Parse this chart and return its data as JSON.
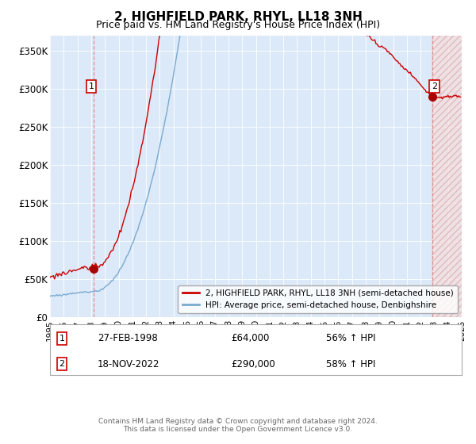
{
  "title": "2, HIGHFIELD PARK, RHYL, LL18 3NH",
  "subtitle": "Price paid vs. HM Land Registry's House Price Index (HPI)",
  "property_label": "2, HIGHFIELD PARK, RHYL, LL18 3NH (semi-detached house)",
  "hpi_label": "HPI: Average price, semi-detached house, Denbighshire",
  "transaction1": {
    "date": "27-FEB-1998",
    "price": 64000,
    "hpi_pct": "56% ↑ HPI",
    "label": "1"
  },
  "transaction2": {
    "date": "18-NOV-2022",
    "price": 290000,
    "hpi_pct": "58% ↑ HPI",
    "label": "2"
  },
  "footer": "Contains HM Land Registry data © Crown copyright and database right 2024.\nThis data is licensed under the Open Government Licence v3.0.",
  "ylim": [
    0,
    370000
  ],
  "yticks": [
    0,
    50000,
    100000,
    150000,
    200000,
    250000,
    300000,
    350000
  ],
  "ytick_labels": [
    "£0",
    "£50K",
    "£100K",
    "£150K",
    "£200K",
    "£250K",
    "£300K",
    "£350K"
  ],
  "background_color": "#dce9f8",
  "line_color_property": "#cc0000",
  "line_color_hpi": "#7aaad0",
  "marker_color": "#aa0000",
  "vline_color": "#dd8888",
  "hatch_color": "#ddaaaa"
}
